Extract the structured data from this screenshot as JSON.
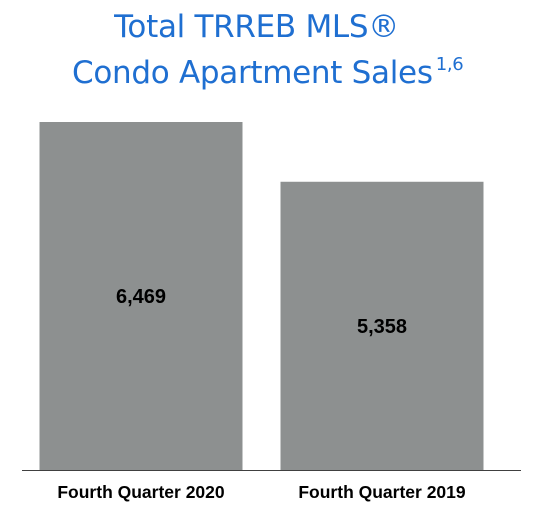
{
  "title": {
    "line1": "Total TRREB MLS®",
    "line2": "Condo Apartment Sales",
    "superscript": "1,6"
  },
  "chart_data": {
    "type": "bar",
    "categories": [
      "Fourth Quarter 2020",
      "Fourth Quarter 2019"
    ],
    "values": [
      6469,
      5358
    ],
    "value_labels": [
      "6,469",
      "5,358"
    ],
    "title": "Total TRREB MLS® Condo Apartment Sales",
    "xlabel": "",
    "ylabel": "",
    "ylim": [
      0,
      6469
    ],
    "grid": false,
    "legend": "none",
    "bar_color": "#8d9090",
    "axis_color": "#404040"
  }
}
